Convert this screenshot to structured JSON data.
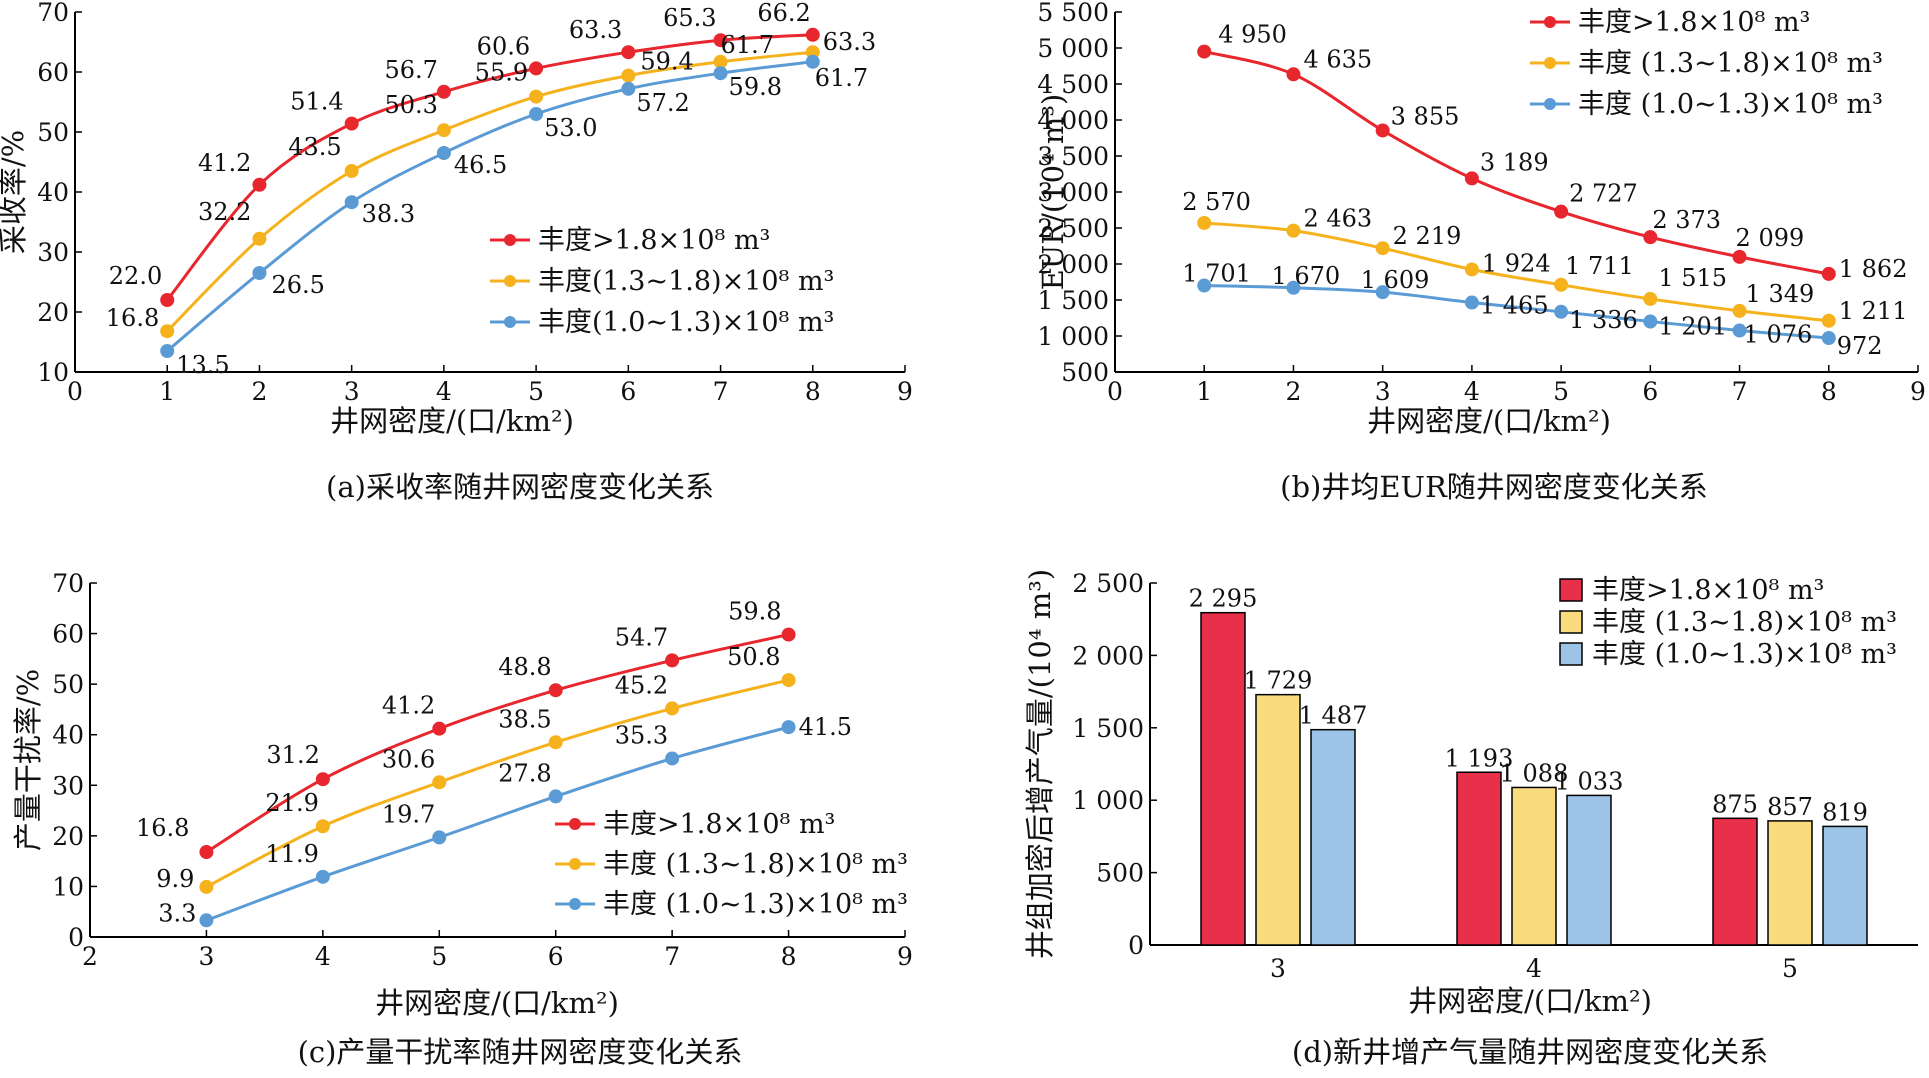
{
  "chart_data": [
    {
      "id": "a",
      "type": "line",
      "caption": "(a)采收率随井网密度变化关系",
      "xlabel": "井网密度/(口/km²)",
      "ylabel": "采收率/%",
      "xlim": [
        0,
        9
      ],
      "ylim": [
        10,
        70
      ],
      "xticks": [
        0,
        1,
        2,
        3,
        4,
        5,
        6,
        7,
        8,
        9
      ],
      "yticks": [
        10,
        20,
        30,
        40,
        50,
        60,
        70
      ],
      "ytick_labels": [
        "10",
        "20",
        "30",
        "40",
        "50",
        "60",
        "70"
      ],
      "legend_position": "right-middle",
      "x": [
        1,
        2,
        3,
        4,
        5,
        6,
        7,
        8
      ],
      "series": [
        {
          "name": "丰度>1.8×10⁸ m³",
          "color": "#e8262e",
          "values": [
            22.0,
            41.2,
            51.4,
            56.7,
            60.6,
            63.3,
            65.3,
            66.2
          ],
          "labels": [
            "22.0",
            "41.2",
            "51.4",
            "56.7",
            "60.6",
            "63.3",
            "65.3",
            "66.2"
          ]
        },
        {
          "name": "丰度(1.3~1.8)×10⁸ m³",
          "color": "#f5b21c",
          "values": [
            16.8,
            32.2,
            43.5,
            50.3,
            55.9,
            59.4,
            61.7,
            63.3
          ],
          "labels": [
            "16.8",
            "32.2",
            "43.5",
            "50.3",
            "55.9",
            "59.4",
            "61.7",
            "63.3"
          ]
        },
        {
          "name": "丰度(1.0~1.3)×10⁸ m³",
          "color": "#5b9bd5",
          "values": [
            13.5,
            26.5,
            38.3,
            46.5,
            53.0,
            57.2,
            59.8,
            61.7
          ],
          "labels": [
            "13.5",
            "26.5",
            "38.3",
            "46.5",
            "53.0",
            "57.2",
            "59.8",
            "61.7"
          ]
        }
      ]
    },
    {
      "id": "b",
      "type": "line",
      "caption": "(b)井均EUR随井网密度变化关系",
      "xlabel": "井网密度/(口/km²)",
      "ylabel": "EUR/(10⁴ m³)",
      "xlim": [
        0,
        9
      ],
      "ylim": [
        500,
        5500
      ],
      "xticks": [
        0,
        1,
        2,
        3,
        4,
        5,
        6,
        7,
        8,
        9
      ],
      "yticks": [
        500,
        1000,
        1500,
        2000,
        2500,
        3000,
        3500,
        4000,
        4500,
        5000,
        5500
      ],
      "ytick_labels": [
        "500",
        "1 000",
        "1 500",
        "2 000",
        "2 500",
        "3 000",
        "3 500",
        "4 000",
        "4 500",
        "5 000",
        "5 500"
      ],
      "legend_position": "top-right",
      "x": [
        1,
        2,
        3,
        4,
        5,
        6,
        7,
        8
      ],
      "series": [
        {
          "name": "丰度>1.8×10⁸ m³",
          "color": "#e8262e",
          "values": [
            4950,
            4635,
            3855,
            3189,
            2727,
            2373,
            2099,
            1862
          ],
          "labels": [
            "4 950",
            "4 635",
            "3 855",
            "3 189",
            "2 727",
            "2 373",
            "2 099",
            "1 862"
          ]
        },
        {
          "name": "丰度 (1.3~1.8)×10⁸ m³",
          "color": "#f5b21c",
          "values": [
            2570,
            2463,
            2219,
            1924,
            1711,
            1515,
            1349,
            1211
          ],
          "labels": [
            "2 570",
            "2 463",
            "2 219",
            "1 924",
            "1 711",
            "1 515",
            "1 349",
            "1 211"
          ]
        },
        {
          "name": "丰度 (1.0~1.3)×10⁸ m³",
          "color": "#5b9bd5",
          "values": [
            1701,
            1670,
            1609,
            1465,
            1336,
            1201,
            1076,
            972
          ],
          "labels": [
            "1 701",
            "1 670",
            "1 609",
            "1 465",
            "1 336",
            "1 201",
            "1 076",
            "972"
          ]
        }
      ]
    },
    {
      "id": "c",
      "type": "line",
      "caption": "(c)产量干扰率随井网密度变化关系",
      "xlabel": "井网密度/(口/km²)",
      "ylabel": "产量干扰率/%",
      "xlim": [
        2,
        9
      ],
      "ylim": [
        0,
        70
      ],
      "xticks": [
        2,
        3,
        4,
        5,
        6,
        7,
        8,
        9
      ],
      "yticks": [
        0,
        10,
        20,
        30,
        40,
        50,
        60,
        70
      ],
      "ytick_labels": [
        "0",
        "10",
        "20",
        "30",
        "40",
        "50",
        "60",
        "70"
      ],
      "legend_position": "bottom-right",
      "x": [
        3,
        4,
        5,
        6,
        7,
        8
      ],
      "series": [
        {
          "name": "丰度>1.8×10⁸ m³",
          "color": "#e8262e",
          "values": [
            16.8,
            31.2,
            41.2,
            48.8,
            54.7,
            59.8
          ],
          "labels": [
            "16.8",
            "31.2",
            "41.2",
            "48.8",
            "54.7",
            "59.8"
          ]
        },
        {
          "name": "丰度 (1.3~1.8)×10⁸ m³",
          "color": "#f5b21c",
          "values": [
            9.9,
            21.9,
            30.6,
            38.5,
            45.2,
            50.8
          ],
          "labels": [
            "9.9",
            "21.9",
            "30.6",
            "38.5",
            "45.2",
            "50.8"
          ]
        },
        {
          "name": "丰度 (1.0~1.3)×10⁸ m³",
          "color": "#5b9bd5",
          "values": [
            3.3,
            11.9,
            19.7,
            27.8,
            35.3,
            41.5
          ],
          "labels": [
            "3.3",
            "11.9",
            "19.7",
            "27.8",
            "35.3",
            "41.5"
          ]
        }
      ]
    },
    {
      "id": "d",
      "type": "bar",
      "caption": "(d)新井增产气量随井网密度变化关系",
      "xlabel": "井网密度/(口/km²)",
      "ylabel": "井组加密后增产气量/(10⁴ m³)",
      "ylim": [
        0,
        2500
      ],
      "yticks": [
        0,
        500,
        1000,
        1500,
        2000,
        2500
      ],
      "ytick_labels": [
        "0",
        "500",
        "1 000",
        "1 500",
        "2 000",
        "2 500"
      ],
      "legend_position": "top-right",
      "categories": [
        "3",
        "4",
        "5"
      ],
      "series": [
        {
          "name": "丰度>1.8×10⁸ m³",
          "color": "#e8304a",
          "values": [
            2295,
            1193,
            875
          ],
          "labels": [
            "2 295",
            "1 193",
            "875"
          ]
        },
        {
          "name": "丰度 (1.3~1.8)×10⁸ m³",
          "color": "#fadb7d",
          "values": [
            1729,
            1088,
            857
          ],
          "labels": [
            "1 729",
            "1 088",
            "857"
          ]
        },
        {
          "name": "丰度 (1.0~1.3)×10⁸ m³",
          "color": "#9dc3e6",
          "values": [
            1487,
            1033,
            819
          ],
          "labels": [
            "1 487",
            "1 033",
            "819"
          ]
        }
      ]
    }
  ]
}
